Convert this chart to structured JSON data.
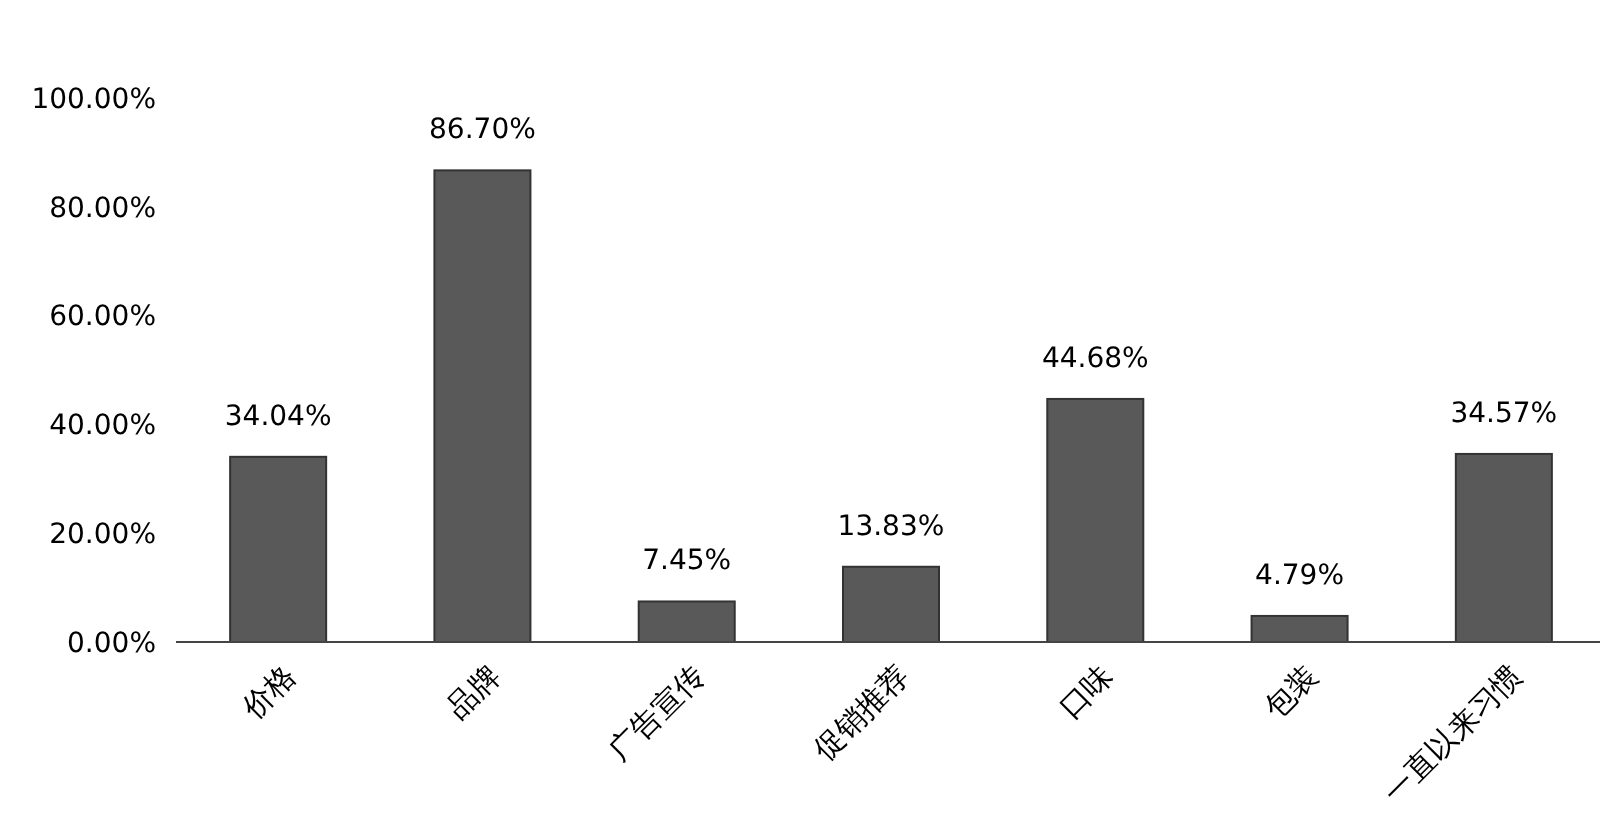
{
  "chart_data": {
    "type": "bar",
    "categories": [
      "价格",
      "品牌",
      "广告宣传",
      "促销推荐",
      "口味",
      "包装",
      "一直以来习惯"
    ],
    "values": [
      34.04,
      86.7,
      7.45,
      13.83,
      44.68,
      4.79,
      34.57
    ],
    "value_labels": [
      "34.04%",
      "86.70%",
      "7.45%",
      "13.83%",
      "44.68%",
      "4.79%",
      "34.57%"
    ],
    "color": "#595959",
    "ylim": [
      0,
      100
    ],
    "yticks": [
      {
        "value": 0,
        "label": "0.00%"
      },
      {
        "value": 20,
        "label": "20.00%"
      },
      {
        "value": 40,
        "label": "40.00%"
      },
      {
        "value": 60,
        "label": "60.00%"
      },
      {
        "value": 80,
        "label": "80.00%"
      },
      {
        "value": 100,
        "label": "100.00%"
      }
    ],
    "grid": false
  }
}
